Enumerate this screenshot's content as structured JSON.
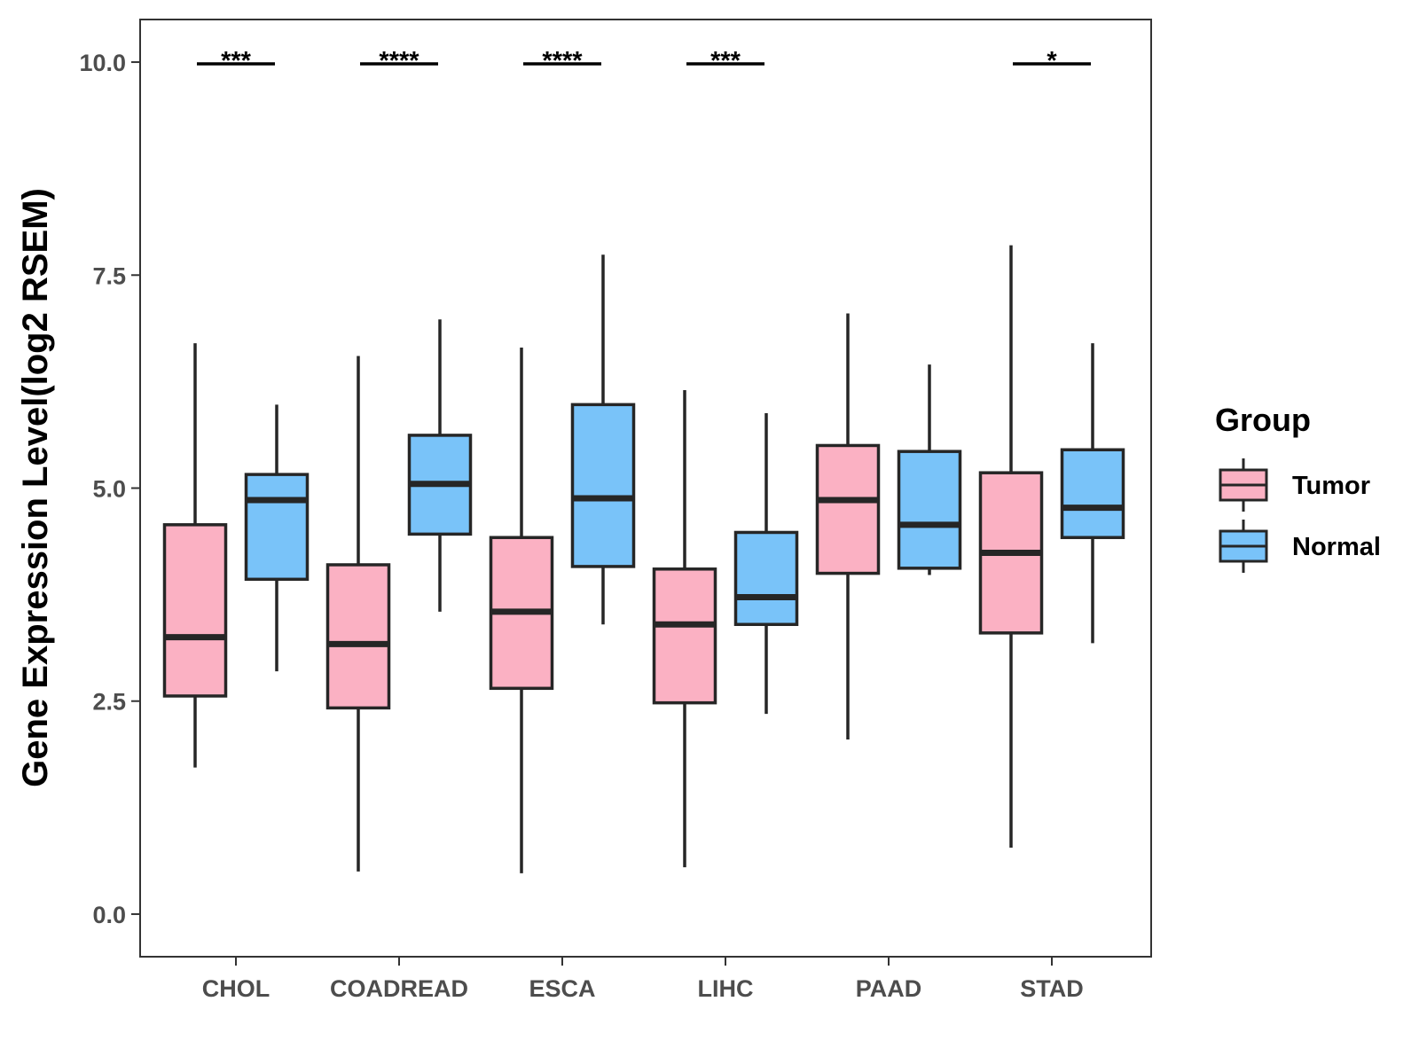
{
  "chart_data": {
    "type": "boxplot",
    "title": "",
    "xlabel": "",
    "ylabel": "Gene Expression Level(log2 RSEM)",
    "ylim": [
      -0.5,
      10.5
    ],
    "yticks": [
      0.0,
      2.5,
      5.0,
      7.5,
      10.0
    ],
    "ytick_labels": [
      "0.0",
      "2.5",
      "5.0",
      "7.5",
      "10.0"
    ],
    "categories": [
      "CHOL",
      "COADREAD",
      "ESCA",
      "LIHC",
      "PAAD",
      "STAD"
    ],
    "legend": {
      "title": "Group",
      "position": "right",
      "entries": [
        {
          "name": "Tumor",
          "color": "#fbb1c3"
        },
        {
          "name": "Normal",
          "color": "#79c3f9"
        }
      ]
    },
    "series": [
      {
        "name": "Tumor",
        "color": "#fbb1c3",
        "boxes": [
          {
            "min": 1.72,
            "q1": 2.56,
            "median": 3.25,
            "q3": 4.57,
            "max": 6.7
          },
          {
            "min": 0.5,
            "q1": 2.42,
            "median": 3.17,
            "q3": 4.1,
            "max": 6.55
          },
          {
            "min": 0.48,
            "q1": 2.65,
            "median": 3.55,
            "q3": 4.42,
            "max": 6.65
          },
          {
            "min": 0.55,
            "q1": 2.48,
            "median": 3.4,
            "q3": 4.05,
            "max": 6.15
          },
          {
            "min": 2.05,
            "q1": 4.0,
            "median": 4.86,
            "q3": 5.5,
            "max": 7.05
          },
          {
            "min": 0.78,
            "q1": 3.3,
            "median": 4.24,
            "q3": 5.18,
            "max": 7.85
          }
        ]
      },
      {
        "name": "Normal",
        "color": "#79c3f9",
        "boxes": [
          {
            "min": 2.85,
            "q1": 3.93,
            "median": 4.86,
            "q3": 5.16,
            "max": 5.98
          },
          {
            "min": 3.55,
            "q1": 4.46,
            "median": 5.05,
            "q3": 5.62,
            "max": 6.98
          },
          {
            "min": 3.4,
            "q1": 4.08,
            "median": 4.88,
            "q3": 5.98,
            "max": 7.74
          },
          {
            "min": 2.35,
            "q1": 3.4,
            "median": 3.72,
            "q3": 4.48,
            "max": 5.88
          },
          {
            "min": 3.98,
            "q1": 4.06,
            "median": 4.57,
            "q3": 5.43,
            "max": 6.45
          },
          {
            "min": 3.18,
            "q1": 4.42,
            "median": 4.77,
            "q3": 5.45,
            "max": 6.7
          }
        ]
      }
    ],
    "significance": [
      {
        "category": "CHOL",
        "label": "***",
        "y": 10.0
      },
      {
        "category": "COADREAD",
        "label": "****",
        "y": 10.0
      },
      {
        "category": "ESCA",
        "label": "****",
        "y": 10.0
      },
      {
        "category": "LIHC",
        "label": "***",
        "y": 10.0
      },
      {
        "category": "STAD",
        "label": "*",
        "y": 10.0
      }
    ]
  }
}
